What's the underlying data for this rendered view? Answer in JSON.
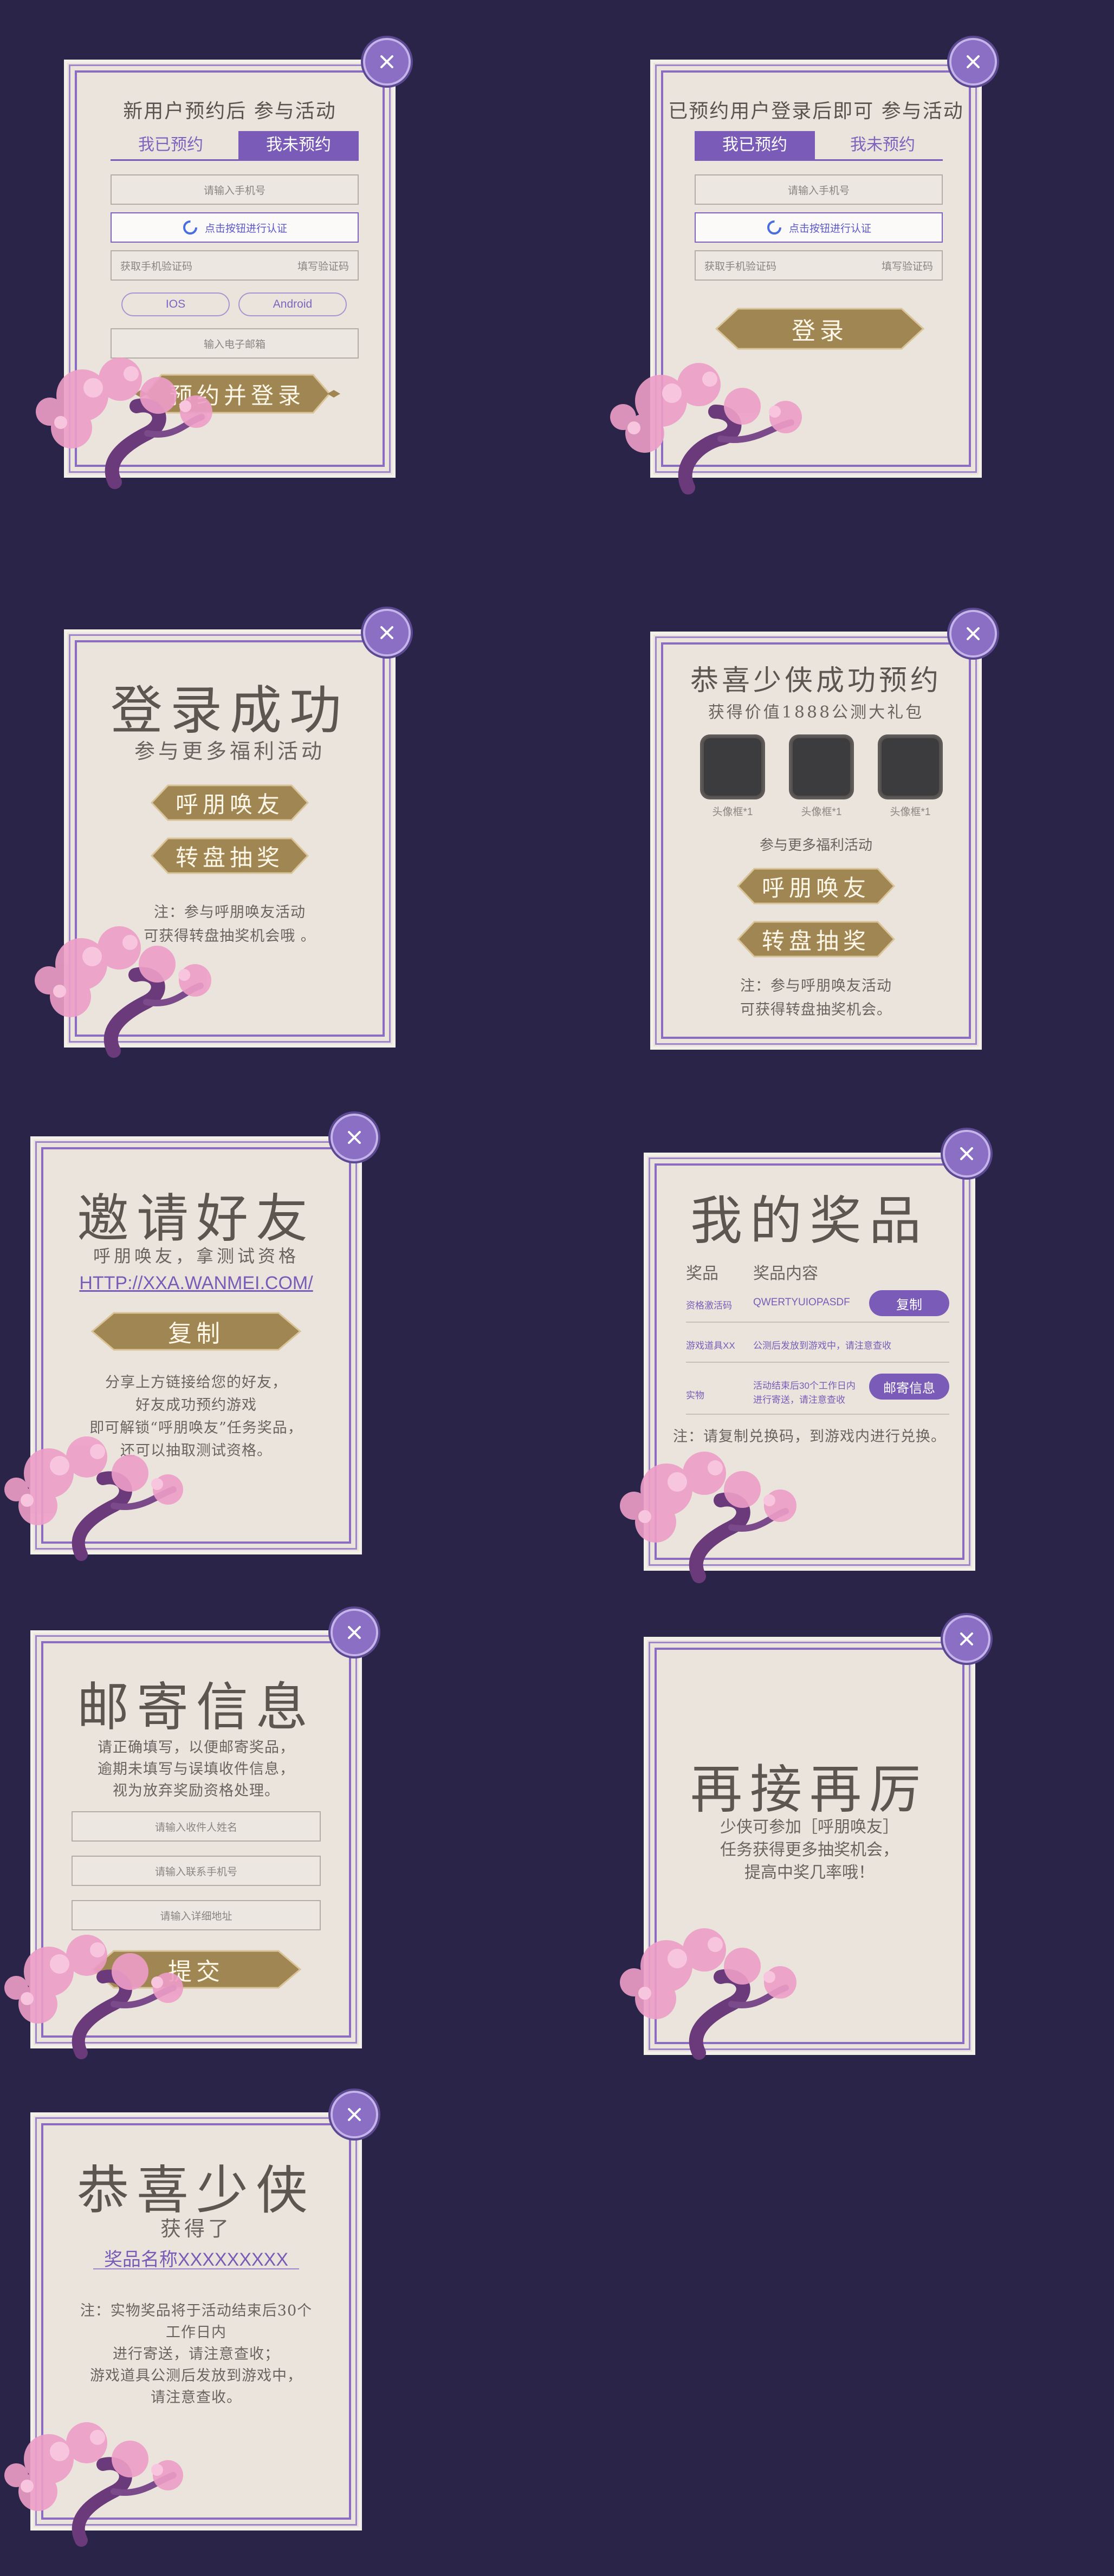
{
  "colors": {
    "background": "#2a2548",
    "panel": "#eae4dc",
    "accent": "#7a5cb8",
    "gold": "#a38a55"
  },
  "icons": {
    "close": "close-icon",
    "blossom": "cherry-blossom-tree-icon",
    "spinner": "loading-circle-icon",
    "diamond": "diamond-icon"
  },
  "p1": {
    "title": "新用户预约后  参与活动",
    "tab_booked": "我已预约",
    "tab_unbooked": "我未预约",
    "phone_placeholder": "请输入手机号",
    "verify_label": "点击按钮进行认证",
    "code_label": "获取手机验证码",
    "code_placeholder": "填写验证码",
    "ios": "IOS",
    "android": "Android",
    "email_placeholder": "输入电子邮箱",
    "submit": "预约并登录"
  },
  "p2": {
    "title": "已预约用户登录后即可  参与活动",
    "tab_booked": "我已预约",
    "tab_unbooked": "我未预约",
    "phone_placeholder": "请输入手机号",
    "verify_label": "点击按钮进行认证",
    "code_label": "获取手机验证码",
    "code_placeholder": "填写验证码",
    "submit": "登录"
  },
  "p3": {
    "title": "登录成功",
    "subtitle": "参与更多福利活动",
    "btn_invite": "呼朋唤友",
    "btn_wheel": "转盘抽奖",
    "note1": "注：参与呼朋唤友活动",
    "note2": "可获得转盘抽奖机会哦 。"
  },
  "p4": {
    "title": "恭喜少侠成功预约",
    "subtitle": "获得价值1888公测大礼包",
    "avatar_labels": [
      "头像框*1",
      "头像框*1",
      "头像框*1"
    ],
    "more": "参与更多福利活动",
    "btn_invite": "呼朋唤友",
    "btn_wheel": "转盘抽奖",
    "note1": "注：参与呼朋唤友活动",
    "note2": "可获得转盘抽奖机会。"
  },
  "p5": {
    "title": "邀请好友",
    "subtitle": "呼朋唤友，拿测试资格",
    "link": "HTTP://XXA.WANMEI.COM/",
    "btn_copy": "复制",
    "desc": [
      "分享上方链接给您的好友，",
      "好友成功预约游戏",
      "即可解锁“呼朋唤友”任务奖品，",
      "还可以抽取测试资格。"
    ]
  },
  "p6": {
    "title": "我的奖品",
    "col1": "奖品",
    "col2": "奖品内容",
    "rows": [
      {
        "name": "资格激活码",
        "content": "QWERTYUIOPASDF",
        "action": "复制"
      },
      {
        "name": "游戏道具XX",
        "content": "公测后发放到游戏中，请注意查收"
      },
      {
        "name": "实物",
        "content1": "活动结束后30个工作日内",
        "content2": "进行寄送，请注意查收",
        "action": "邮寄信息"
      }
    ],
    "note": "注：请复制兑换码，到游戏内进行兑换。"
  },
  "p7": {
    "title": "邮寄信息",
    "desc": [
      "请正确填写，以便邮寄奖品，",
      "逾期未填写与误填收件信息，",
      "视为放弃奖励资格处理。"
    ],
    "name_placeholder": "请输入收件人姓名",
    "phone_placeholder": "请输入联系手机号",
    "address_placeholder": "请输入详细地址",
    "submit": "提交"
  },
  "p8": {
    "title": "再接再厉",
    "desc": [
      "少侠可参加［呼朋唤友］",
      "任务获得更多抽奖机会，",
      "提高中奖几率哦！"
    ]
  },
  "p9": {
    "title": "恭喜少侠",
    "subtitle": "获得了",
    "prize": "奖品名称XXXXXXXXX",
    "desc": [
      "注：实物奖品将于活动结束后30个",
      "工作日内",
      "进行寄送，请注意查收；",
      "游戏道具公测后发放到游戏中，",
      "请注意查收。"
    ]
  }
}
